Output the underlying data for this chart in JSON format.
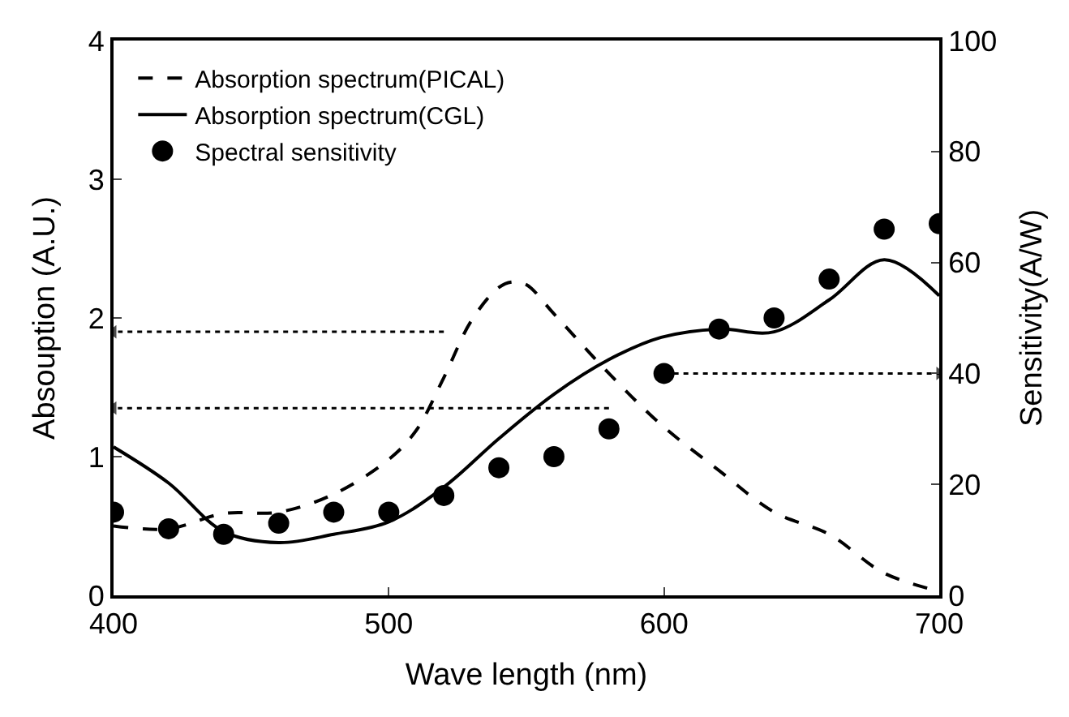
{
  "chart_data": {
    "type": "line",
    "xlabel": "Wave length (nm)",
    "ylabel": "Absouption (A.U.)",
    "y2label": "Sensitivity(A/W)",
    "xlim": [
      400,
      700
    ],
    "xticks": [
      400,
      500,
      600,
      700
    ],
    "ylim": [
      0,
      4
    ],
    "yticks": [
      0,
      1,
      2,
      3,
      4
    ],
    "y2lim": [
      0,
      100
    ],
    "y2ticks": [
      0,
      20,
      40,
      60,
      80,
      100
    ],
    "legend": "top left",
    "series": [
      {
        "name": "Absorption spectrum(PICAL)",
        "line_style": "dashed",
        "color": "#000000",
        "x": [
          400,
          420,
          440,
          460,
          480,
          500,
          510,
          520,
          530,
          540,
          545,
          550,
          560,
          580,
          599,
          620,
          640,
          660,
          680,
          700
        ],
        "values": [
          0.5,
          0.48,
          0.59,
          0.6,
          0.73,
          0.98,
          1.19,
          1.57,
          1.98,
          2.22,
          2.26,
          2.24,
          2.03,
          1.6,
          1.23,
          0.9,
          0.6,
          0.44,
          0.16,
          0.03
        ]
      },
      {
        "name": "Absorption spectrum(CGL)",
        "line_style": "solid",
        "color": "#000000",
        "x": [
          400,
          420,
          440,
          460,
          480,
          500,
          520,
          540,
          560,
          580,
          599,
          620,
          640,
          660,
          680,
          700
        ],
        "values": [
          1.07,
          0.81,
          0.46,
          0.38,
          0.44,
          0.53,
          0.78,
          1.13,
          1.45,
          1.7,
          1.86,
          1.92,
          1.9,
          2.13,
          2.42,
          2.16
        ]
      },
      {
        "name": "Spectral sensitivity",
        "type": "scatter",
        "marker": "circle",
        "axis": "y2",
        "color": "#000000",
        "x": [
          400,
          420,
          440,
          460,
          480,
          500,
          520,
          540,
          560,
          580,
          600,
          620,
          640,
          660,
          680,
          700
        ],
        "values": [
          15,
          12,
          11,
          13,
          15,
          15,
          18,
          23,
          25,
          30,
          40,
          48,
          50,
          57,
          66,
          67
        ]
      },
      {
        "line_style": "dotted",
        "marker": "triangle",
        "color": "#000000",
        "x": [
          520,
          400
        ],
        "values": [
          1.9,
          1.9
        ]
      },
      {
        "line_style": "dotted",
        "marker": "triangle",
        "color": "#000000",
        "x": [
          580,
          400
        ],
        "values": [
          1.35,
          1.35
        ]
      },
      {
        "line_style": "dotted",
        "marker": "triangle",
        "axis": "y2",
        "color": "#000000",
        "x": [
          600,
          700
        ],
        "values": [
          40,
          40
        ]
      }
    ]
  }
}
